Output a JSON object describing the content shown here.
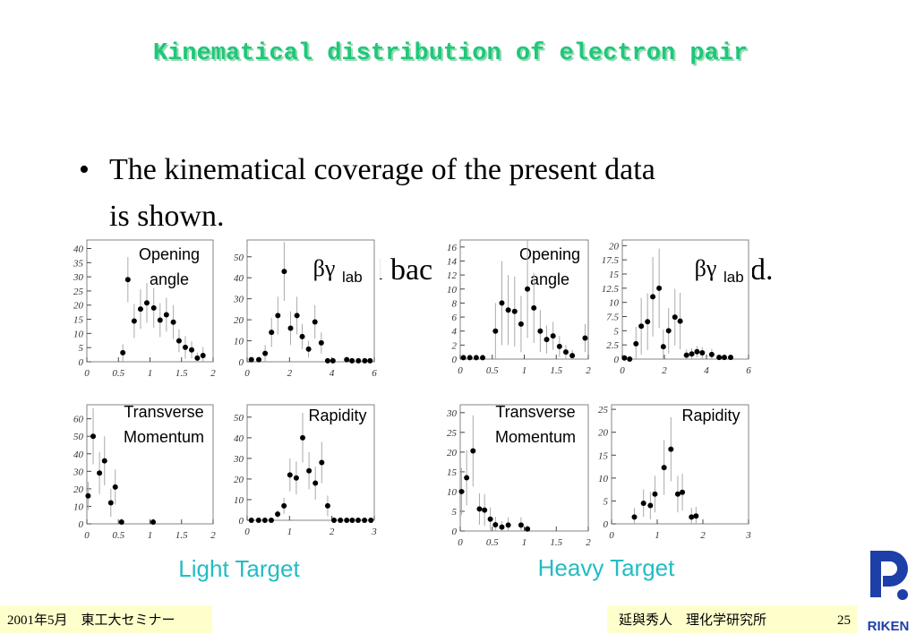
{
  "slide": {
    "title": "Kinematical distribution of electron pair",
    "bullet": [
      "The kinematical coverage of the present data",
      "is shown."
    ],
    "fragments": [
      "l bac",
      "d."
    ],
    "groups": [
      "Light Target",
      "Heavy Target"
    ],
    "footer_left": "2001年5月　東工大セミナー",
    "footer_right": "延與秀人　理化学研究所",
    "page": "25",
    "logo": "RIKEN"
  },
  "chart_data": [
    {
      "type": "scatter",
      "title": [
        "Opening",
        "angle"
      ],
      "color": "#000000",
      "x": [
        0.57,
        0.65,
        0.75,
        0.85,
        0.95,
        1.06,
        1.16,
        1.26,
        1.37,
        1.46,
        1.56,
        1.66,
        1.75,
        1.84
      ],
      "values": [
        3.2,
        29,
        14.4,
        18.6,
        20.8,
        19,
        14.7,
        16.6,
        14,
        7.4,
        5.1,
        4.2,
        1.3,
        2.2
      ],
      "errors": [
        3,
        8,
        6,
        7,
        7,
        7,
        6,
        6,
        6,
        4,
        4,
        3,
        2,
        3
      ],
      "xlim": [
        0,
        2
      ],
      "ylim": [
        0,
        43
      ],
      "xticks": [
        0,
        0.5,
        1,
        1.5,
        2
      ],
      "yticks": [
        0,
        5,
        10,
        15,
        20,
        25,
        30,
        35,
        40
      ]
    },
    {
      "type": "scatter",
      "title": [
        "βγ"
      ],
      "title_sub": "lab",
      "color": "#000000",
      "x": [
        0.2,
        0.55,
        0.85,
        1.15,
        1.45,
        1.75,
        2.05,
        2.35,
        2.6,
        2.9,
        3.2,
        3.5,
        3.8,
        4.05,
        4.7,
        4.95,
        5.25,
        5.55,
        5.8
      ],
      "values": [
        1,
        1,
        4,
        14,
        22,
        43,
        16,
        22,
        12,
        6,
        19,
        9,
        0.5,
        0.5,
        1,
        0.5,
        0.5,
        0.5,
        0.5
      ],
      "errors": [
        1,
        1,
        4,
        7,
        9,
        14,
        8,
        9,
        6,
        4,
        8,
        5,
        1,
        1,
        1,
        1,
        1,
        1,
        1
      ],
      "xlim": [
        0,
        6
      ],
      "ylim": [
        0,
        58
      ],
      "xticks": [
        0,
        2,
        4,
        6
      ],
      "yticks": [
        0,
        10,
        20,
        30,
        40,
        50
      ]
    },
    {
      "type": "scatter",
      "title": [
        "Transverse",
        "Momentum"
      ],
      "color": "#000000",
      "x": [
        0.02,
        0.1,
        0.2,
        0.28,
        0.38,
        0.45,
        0.55,
        1.05
      ],
      "values": [
        16,
        50,
        29,
        36,
        12,
        21,
        1,
        1
      ],
      "errors": [
        8,
        16,
        12,
        14,
        8,
        10,
        2,
        2
      ],
      "xlim": [
        0,
        2
      ],
      "ylim": [
        0,
        68
      ],
      "xticks": [
        0,
        0.5,
        1,
        1.5,
        2
      ],
      "yticks": [
        0,
        10,
        20,
        30,
        40,
        50,
        60
      ]
    },
    {
      "type": "scatter",
      "title": [
        "Rapidity"
      ],
      "color": "#000000",
      "x": [
        0.1,
        0.27,
        0.42,
        0.57,
        0.72,
        0.87,
        1.01,
        1.16,
        1.31,
        1.46,
        1.61,
        1.76,
        1.9,
        2.05,
        2.2,
        2.35,
        2.48,
        2.62,
        2.77,
        2.92
      ],
      "values": [
        0,
        0,
        0,
        0,
        3,
        7,
        22,
        20.5,
        40,
        24,
        18,
        28,
        7,
        0,
        0,
        0,
        0,
        0,
        0,
        0
      ],
      "errors": [
        1,
        1,
        1,
        1,
        2,
        4,
        8,
        8,
        12,
        9,
        8,
        10,
        5,
        1,
        1,
        1,
        1,
        1,
        1,
        1
      ],
      "xlim": [
        0,
        3
      ],
      "ylim": [
        0,
        56
      ],
      "xticks": [
        0,
        1,
        2,
        3
      ],
      "yticks": [
        0,
        10,
        20,
        30,
        40,
        50
      ]
    },
    {
      "type": "scatter",
      "title": [
        "Opening",
        "angle"
      ],
      "color": "#000000",
      "x": [
        0.05,
        0.15,
        0.25,
        0.35,
        0.55,
        0.65,
        0.75,
        0.85,
        0.95,
        1.05,
        1.15,
        1.25,
        1.35,
        1.45,
        1.55,
        1.65,
        1.75,
        1.95
      ],
      "values": [
        0.2,
        0.2,
        0.2,
        0.2,
        4,
        8,
        7,
        6.8,
        5,
        10,
        7.3,
        4,
        2.8,
        3.3,
        1.8,
        1,
        0.5,
        3
      ],
      "errors": [
        0.3,
        0.3,
        0.3,
        0.3,
        4,
        6,
        5,
        5,
        4,
        7,
        5,
        3,
        2,
        2,
        1.5,
        1,
        0.8,
        2
      ],
      "xlim": [
        0,
        2
      ],
      "ylim": [
        0,
        17
      ],
      "xticks": [
        0,
        0.5,
        1,
        1.5,
        2
      ],
      "yticks": [
        0,
        2,
        4,
        6,
        8,
        10,
        12,
        14,
        16
      ]
    },
    {
      "type": "scatter",
      "title": [
        "βγ"
      ],
      "title_sub": "lab",
      "color": "#000000",
      "x": [
        0.1,
        0.35,
        0.65,
        0.9,
        1.2,
        1.45,
        1.75,
        1.95,
        2.2,
        2.5,
        2.75,
        3.05,
        3.3,
        3.55,
        3.8,
        4.25,
        4.6,
        4.85,
        5.15
      ],
      "values": [
        0.2,
        0,
        2.7,
        5.8,
        6.6,
        11,
        12.5,
        2.2,
        5,
        7.4,
        6.7,
        0.7,
        0.9,
        1.3,
        1.1,
        0.8,
        0.3,
        0.3,
        0.3
      ],
      "errors": [
        0.5,
        0.5,
        3,
        5,
        5,
        7,
        7,
        3,
        4,
        5,
        5,
        1,
        1,
        1,
        1,
        1,
        0.5,
        0.5,
        0.5
      ],
      "xlim": [
        0,
        6
      ],
      "ylim": [
        0,
        21
      ],
      "xticks": [
        0,
        2,
        4,
        6
      ],
      "yticks": [
        0,
        2.5,
        5,
        7.5,
        10,
        12.5,
        15,
        17.5,
        20
      ]
    },
    {
      "type": "scatter",
      "title": [
        "Transverse",
        "Momentum"
      ],
      "color": "#000000",
      "x": [
        0.02,
        0.1,
        0.2,
        0.3,
        0.38,
        0.47,
        0.55,
        0.65,
        0.75,
        0.95,
        1.05
      ],
      "values": [
        10,
        13.5,
        20.3,
        5.6,
        5.3,
        3,
        1.6,
        1,
        1.5,
        1.5,
        0.5
      ],
      "errors": [
        6,
        7,
        9,
        4,
        4,
        3,
        2,
        1.5,
        2,
        2,
        1
      ],
      "xlim": [
        0,
        2
      ],
      "ylim": [
        0,
        32
      ],
      "xticks": [
        0,
        0.5,
        1,
        1.5,
        2
      ],
      "yticks": [
        0,
        5,
        10,
        15,
        20,
        25,
        30
      ]
    },
    {
      "type": "scatter",
      "title": [
        "Rapidity"
      ],
      "color": "#000000",
      "x": [
        0.5,
        0.7,
        0.85,
        0.95,
        1.15,
        1.3,
        1.45,
        1.55,
        1.75,
        1.85
      ],
      "values": [
        1.5,
        4.5,
        4,
        6.5,
        12.3,
        16.3,
        6.5,
        6.9,
        1.5,
        1.7
      ],
      "errors": [
        2,
        3,
        3,
        4,
        6,
        7,
        4,
        4,
        2,
        2
      ],
      "xlim": [
        0,
        3
      ],
      "ylim": [
        0,
        26
      ],
      "xticks": [
        0,
        1,
        2,
        3
      ],
      "yticks": [
        0,
        5,
        10,
        15,
        20,
        25
      ]
    }
  ]
}
